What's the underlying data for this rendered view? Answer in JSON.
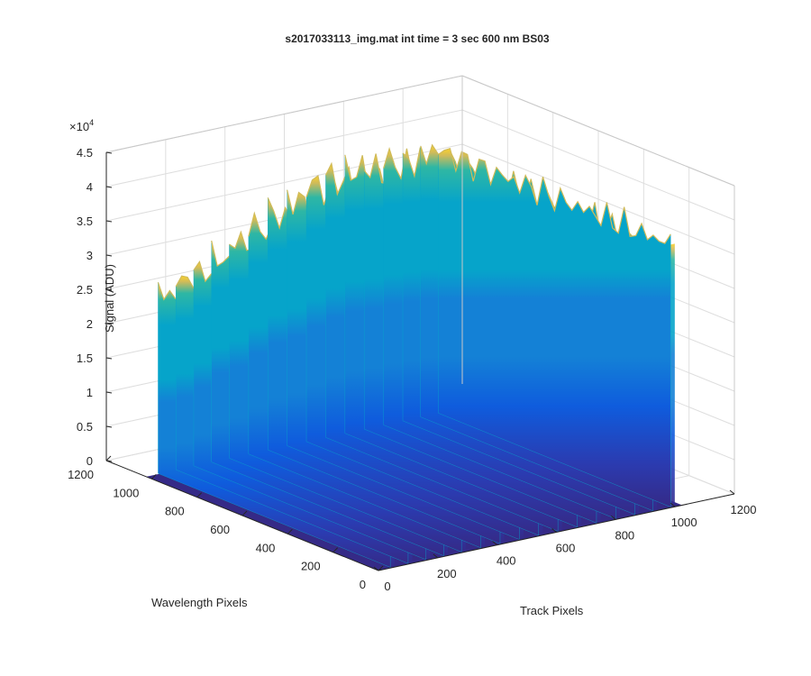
{
  "chart_data": {
    "type": "surface",
    "title": "s2017033113_img.mat int time = 3 sec  600 nm BS03",
    "xlabel": "Track Pixels",
    "ylabel": "Wavelength Pixels",
    "zlabel": "Signal (ADU)",
    "z_exponent_label": "×10",
    "z_exponent_power": "4",
    "xlim": [
      0,
      1200
    ],
    "ylim": [
      0,
      1200
    ],
    "zlim": [
      0,
      45000
    ],
    "x_ticks": [
      "0",
      "200",
      "400",
      "600",
      "800",
      "1000",
      "1200"
    ],
    "y_ticks": [
      "0",
      "200",
      "400",
      "600",
      "800",
      "1000",
      "1200"
    ],
    "z_ticks": [
      "0",
      "0.5",
      "1",
      "1.5",
      "2",
      "2.5",
      "3",
      "3.5",
      "4",
      "4.5"
    ],
    "grid": true,
    "colormap": [
      "#352a87",
      "#0f5cdd",
      "#1481d6",
      "#06a4ca",
      "#2eb7a4",
      "#87bf77",
      "#d1bb59",
      "#fbd12b"
    ],
    "surface_extent": {
      "x": [
        0,
        1024
      ],
      "y": [
        0,
        1024
      ]
    },
    "peak_stripes": {
      "y_range": [
        0,
        1024
      ],
      "x_positions": [
        40,
        100,
        160,
        220,
        280,
        345,
        410,
        475,
        540,
        605,
        670,
        735,
        800,
        865,
        925,
        985
      ],
      "peak_values": [
        28000,
        29500,
        30000,
        31500,
        33500,
        35000,
        36500,
        38000,
        39500,
        40000,
        40500,
        40000,
        40500,
        40000,
        40500,
        40000
      ],
      "base_value": 100
    }
  }
}
